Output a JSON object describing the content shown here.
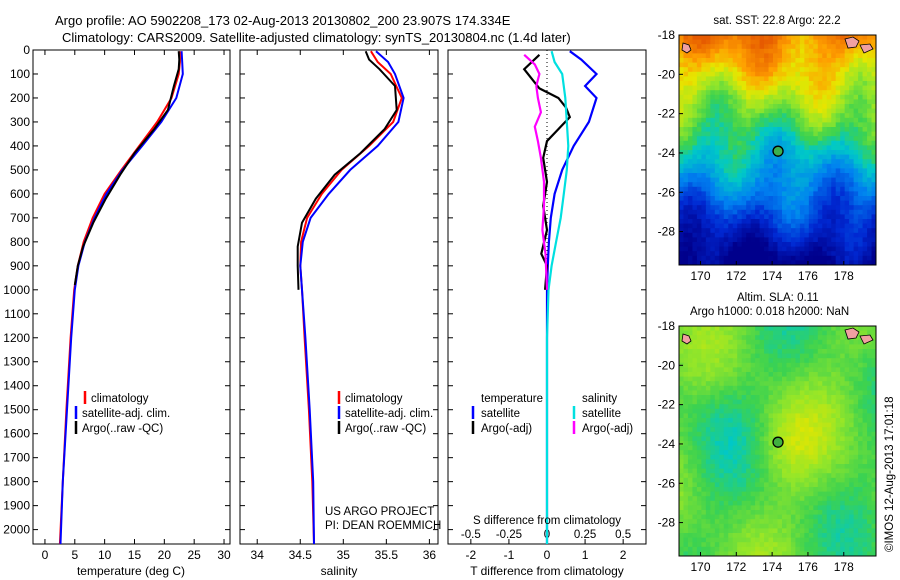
{
  "header": {
    "line1": "Argo profile: AO 5902208_173 02-Aug-2013 20130802_200 23.907S 174.334E",
    "line2": "Climatology: CARS2009. Satellite-adjusted climatology: synTS_20130804.nc (1.4d later)"
  },
  "colors": {
    "climatology": "#ff0000",
    "satellite": "#0000ff",
    "argo": "#000000",
    "sat_salinity": "#00e0e0",
    "argo_salinity": "#ff00ff"
  },
  "chart_data": [
    {
      "type": "line",
      "panel": "temperature",
      "xlabel": "temperature (deg C)",
      "ylabel": "",
      "xlim": [
        -2,
        31
      ],
      "ylim": [
        2060,
        0
      ],
      "xticks": [
        0,
        5,
        10,
        15,
        20,
        25,
        30
      ],
      "yticks": [
        0,
        100,
        200,
        300,
        400,
        500,
        600,
        700,
        800,
        900,
        1000,
        1100,
        1200,
        1300,
        1400,
        1500,
        1600,
        1700,
        1800,
        1900,
        2000
      ],
      "legend": [
        "climatology",
        "satellite-adj. clim.",
        "Argo(..raw -QC)"
      ],
      "legend_position": "lower-left",
      "series": [
        {
          "name": "climatology",
          "color": "#ff0000",
          "points": [
            [
              22.6,
              5
            ],
            [
              22.6,
              50
            ],
            [
              22.4,
              100
            ],
            [
              21.2,
              200
            ],
            [
              18.8,
              300
            ],
            [
              15.8,
              400
            ],
            [
              12.8,
              500
            ],
            [
              10.0,
              600
            ],
            [
              8.0,
              700
            ],
            [
              6.5,
              800
            ],
            [
              5.5,
              900
            ],
            [
              4.9,
              1000
            ],
            [
              4.3,
              1200
            ],
            [
              3.6,
              1500
            ],
            [
              3.0,
              1800
            ],
            [
              2.5,
              2060
            ]
          ]
        },
        {
          "name": "satellite-adj. clim.",
          "color": "#0000ff",
          "points": [
            [
              22.9,
              5
            ],
            [
              23.0,
              50
            ],
            [
              23.1,
              100
            ],
            [
              22.0,
              200
            ],
            [
              19.5,
              300
            ],
            [
              16.3,
              400
            ],
            [
              13.0,
              500
            ],
            [
              10.3,
              600
            ],
            [
              8.3,
              700
            ],
            [
              6.7,
              800
            ],
            [
              5.6,
              900
            ],
            [
              5.0,
              1000
            ],
            [
              4.4,
              1200
            ],
            [
              3.7,
              1500
            ],
            [
              3.0,
              1800
            ],
            [
              2.6,
              2060
            ]
          ]
        },
        {
          "name": "Argo(..raw -QC)",
          "color": "#000000",
          "points": [
            [
              22.4,
              5
            ],
            [
              22.5,
              40
            ],
            [
              22.4,
              80
            ],
            [
              21.6,
              150
            ],
            [
              20.6,
              250
            ],
            [
              18.3,
              330
            ],
            [
              15.0,
              430
            ],
            [
              12.6,
              520
            ],
            [
              10.2,
              620
            ],
            [
              8.1,
              720
            ],
            [
              6.4,
              820
            ],
            [
              5.5,
              900
            ],
            [
              5.0,
              980
            ]
          ]
        }
      ]
    },
    {
      "type": "line",
      "panel": "salinity",
      "xlabel": "salinity",
      "xlim": [
        33.8,
        36.1
      ],
      "ylim": [
        2060,
        0
      ],
      "xticks": [
        34,
        34.5,
        35,
        35.5,
        36
      ],
      "legend": [
        "climatology",
        "satellite-adj. clim.",
        "Argo(..raw -QC)"
      ],
      "legend_position": "lower-left",
      "series": [
        {
          "name": "climatology",
          "color": "#ff0000",
          "points": [
            [
              35.32,
              5
            ],
            [
              35.4,
              50
            ],
            [
              35.55,
              100
            ],
            [
              35.68,
              200
            ],
            [
              35.58,
              300
            ],
            [
              35.3,
              400
            ],
            [
              34.98,
              500
            ],
            [
              34.75,
              600
            ],
            [
              34.58,
              700
            ],
            [
              34.51,
              800
            ],
            [
              34.5,
              900
            ],
            [
              34.52,
              1000
            ],
            [
              34.55,
              1200
            ],
            [
              34.6,
              1500
            ],
            [
              34.64,
              1800
            ],
            [
              34.66,
              2060
            ]
          ]
        },
        {
          "name": "satellite-adj. clim.",
          "color": "#0000ff",
          "points": [
            [
              35.38,
              5
            ],
            [
              35.52,
              50
            ],
            [
              35.6,
              100
            ],
            [
              35.7,
              200
            ],
            [
              35.64,
              300
            ],
            [
              35.4,
              400
            ],
            [
              35.08,
              500
            ],
            [
              34.83,
              600
            ],
            [
              34.62,
              700
            ],
            [
              34.53,
              800
            ],
            [
              34.5,
              900
            ],
            [
              34.52,
              1000
            ],
            [
              34.56,
              1200
            ],
            [
              34.61,
              1500
            ],
            [
              34.65,
              1800
            ],
            [
              34.66,
              2060
            ]
          ]
        },
        {
          "name": "Argo(..raw -QC)",
          "color": "#000000",
          "points": [
            [
              35.26,
              5
            ],
            [
              35.3,
              40
            ],
            [
              35.42,
              80
            ],
            [
              35.6,
              150
            ],
            [
              35.62,
              250
            ],
            [
              35.48,
              330
            ],
            [
              35.2,
              430
            ],
            [
              34.9,
              520
            ],
            [
              34.68,
              620
            ],
            [
              34.52,
              720
            ],
            [
              34.47,
              820
            ],
            [
              34.47,
              900
            ],
            [
              34.48,
              1000
            ]
          ]
        }
      ]
    },
    {
      "type": "line",
      "panel": "differences",
      "xlabel": "T difference from climatology",
      "top_axis_label": "S difference from climatology",
      "xlim": [
        -2.6,
        2.6
      ],
      "xticks": [
        -2,
        -1,
        0,
        1,
        2
      ],
      "top_ticks": [
        -0.5,
        -0.25,
        0,
        0.25,
        0.5
      ],
      "ylim": [
        2060,
        0
      ],
      "legend_titles": [
        "temperature",
        "salinity"
      ],
      "legend": [
        "satellite",
        "Argo(-adj)",
        "satellite",
        "Argo(-adj)"
      ],
      "series": [
        {
          "name": "satellite",
          "group": "temperature",
          "color": "#0000ff",
          "points": [
            [
              0.6,
              5
            ],
            [
              0.9,
              40
            ],
            [
              1.3,
              100
            ],
            [
              1.0,
              150
            ],
            [
              1.3,
              200
            ],
            [
              1.1,
              300
            ],
            [
              0.7,
              400
            ],
            [
              0.4,
              500
            ],
            [
              0.2,
              600
            ],
            [
              0.1,
              700
            ],
            [
              0.05,
              800
            ],
            [
              0.02,
              900
            ],
            [
              0,
              1000
            ],
            [
              0,
              1100
            ],
            [
              0,
              1500
            ],
            [
              0,
              2060
            ]
          ]
        },
        {
          "name": "Argo(-adj)",
          "group": "temperature",
          "color": "#000000",
          "points": [
            [
              -0.2,
              20
            ],
            [
              -0.6,
              80
            ],
            [
              -0.4,
              120
            ],
            [
              -0.2,
              160
            ],
            [
              0.3,
              200
            ],
            [
              0.5,
              240
            ],
            [
              0.6,
              280
            ],
            [
              0.3,
              330
            ],
            [
              0.0,
              380
            ],
            [
              -0.1,
              450
            ],
            [
              0.0,
              550
            ],
            [
              -0.1,
              650
            ],
            [
              0.0,
              750
            ],
            [
              -0.15,
              850
            ],
            [
              0.0,
              900
            ],
            [
              -0.05,
              1000
            ]
          ]
        },
        {
          "name": "satellite",
          "group": "salinity",
          "color": "#00e0e0",
          "points": [
            [
              0.03,
              5
            ],
            [
              0.05,
              50
            ],
            [
              0.1,
              100
            ],
            [
              0.12,
              200
            ],
            [
              0.13,
              300
            ],
            [
              0.14,
              400
            ],
            [
              0.13,
              500
            ],
            [
              0.11,
              600
            ],
            [
              0.09,
              700
            ],
            [
              0.06,
              800
            ],
            [
              0.03,
              900
            ],
            [
              0.01,
              1000
            ],
            [
              0.0,
              1200
            ],
            [
              0.0,
              2060
            ]
          ]
        },
        {
          "name": "Argo(-adj)",
          "group": "salinity",
          "color": "#ff00ff",
          "points": [
            [
              -0.15,
              20
            ],
            [
              -0.08,
              60
            ],
            [
              -0.05,
              100
            ],
            [
              -0.07,
              150
            ],
            [
              -0.06,
              200
            ],
            [
              -0.04,
              260
            ],
            [
              -0.08,
              320
            ],
            [
              -0.06,
              380
            ],
            [
              -0.04,
              450
            ],
            [
              -0.02,
              550
            ],
            [
              -0.02,
              650
            ],
            [
              -0.03,
              750
            ],
            [
              -0.01,
              850
            ],
            [
              0.0,
              1000
            ]
          ]
        }
      ]
    },
    {
      "type": "heatmap",
      "panel": "map-sst",
      "title": "sat. SST: 22.8 Argo: 22.2",
      "xticks": [
        170,
        172,
        174,
        176,
        178
      ],
      "yticks": [
        -18,
        -20,
        -22,
        -24,
        -26,
        -28
      ],
      "xlim": [
        168.8,
        179.8
      ],
      "ylim": [
        -29.7,
        -18
      ],
      "argo_marker": [
        174.33,
        -23.91
      ]
    },
    {
      "type": "heatmap",
      "panel": "map-sla",
      "title_line1": "Altim. SLA: 0.11",
      "title_line2": "Argo h1000: 0.018 h2000: NaN",
      "xticks": [
        170,
        172,
        174,
        176,
        178
      ],
      "yticks": [
        -18,
        -20,
        -22,
        -24,
        -26,
        -28
      ],
      "xlim": [
        168.8,
        179.8
      ],
      "ylim": [
        -29.7,
        -18
      ],
      "argo_marker": [
        174.33,
        -23.91
      ]
    }
  ],
  "annotations": {
    "project_line1": "US ARGO PROJECT",
    "project_line2": "PI: DEAN ROEMMICH",
    "timestamp": "©IMOS 12-Aug-2013 17:01:18"
  }
}
